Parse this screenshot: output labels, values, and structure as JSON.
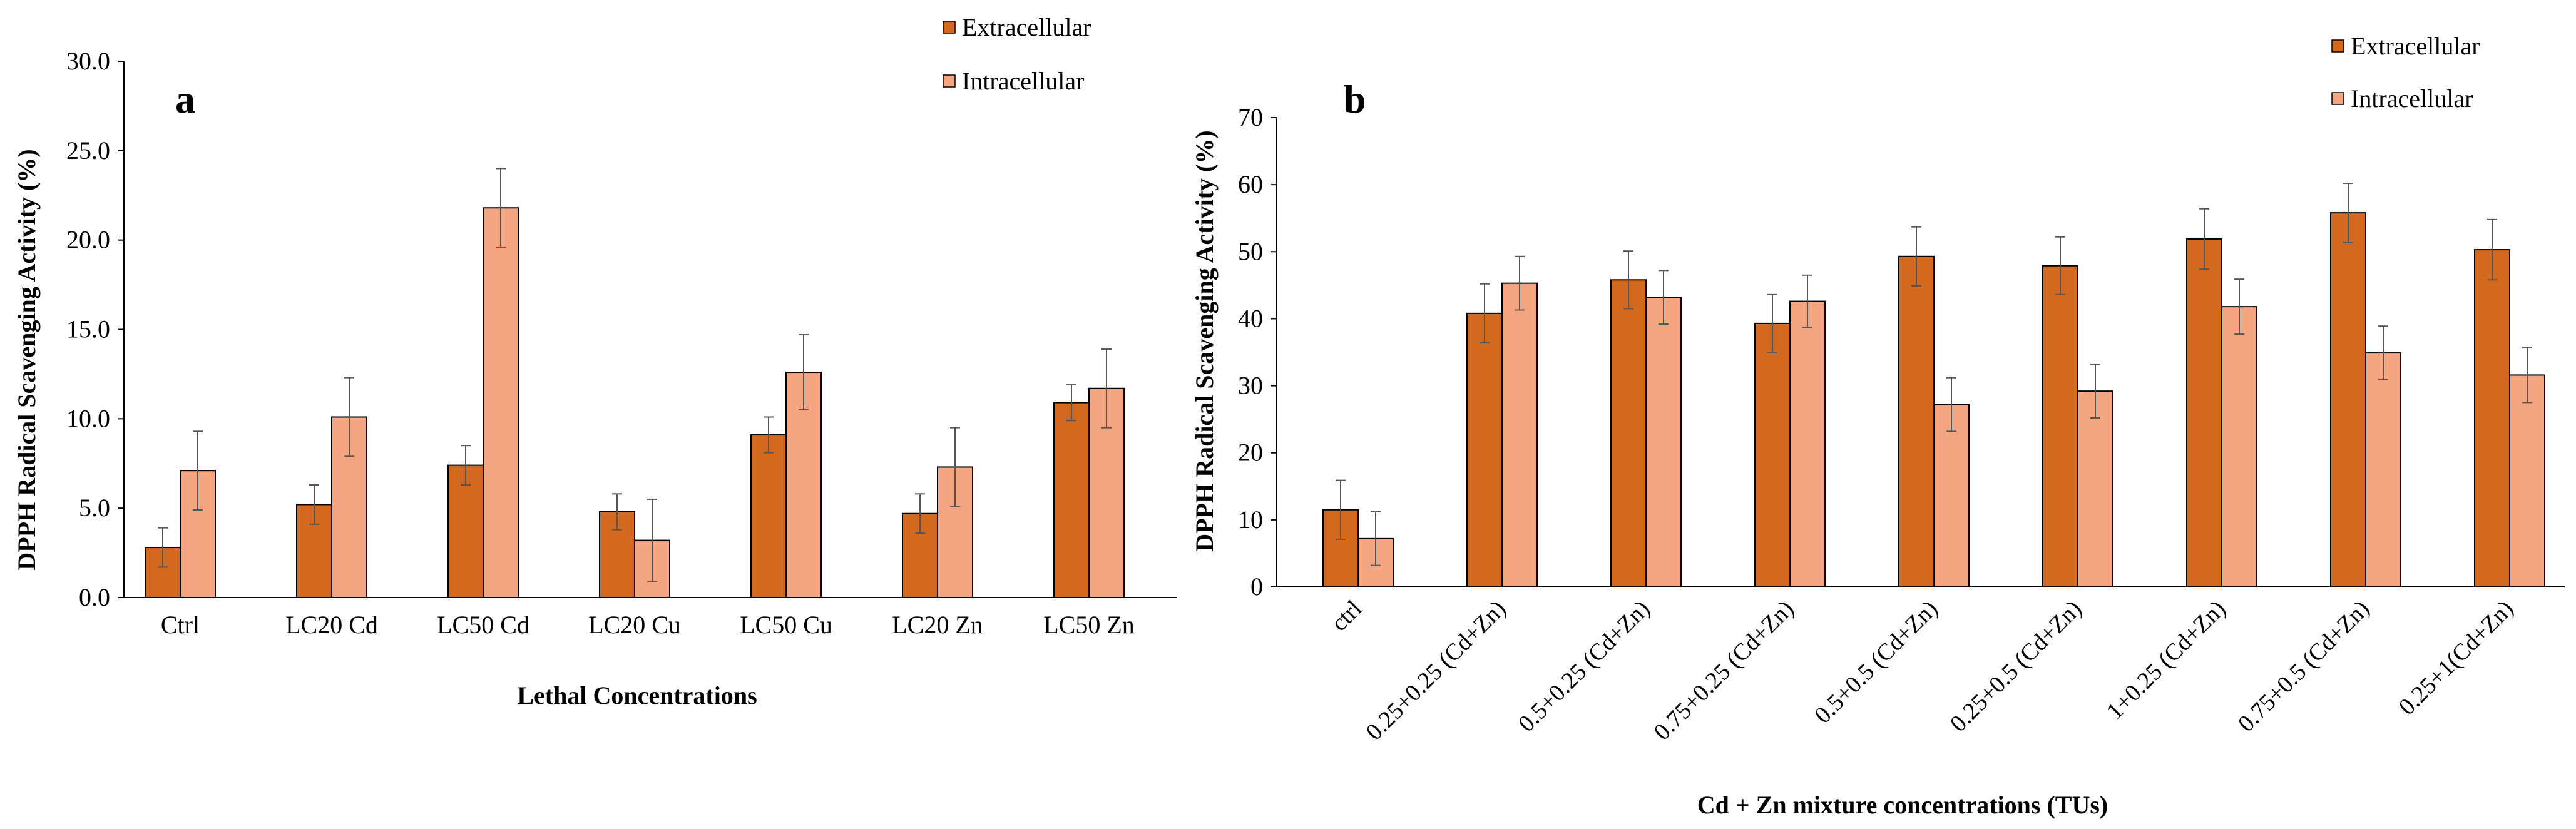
{
  "chart_data": [
    {
      "type": "bar",
      "panel_label": "a",
      "xlabel": "Lethal Concentrations",
      "ylabel": "DPPH Radical Scavenging Activity (%)",
      "ylim": [
        0,
        30
      ],
      "yticks": [
        "0.0",
        "5.0",
        "10.0",
        "15.0",
        "20.0",
        "25.0",
        "30.0"
      ],
      "ytick_values": [
        0,
        5,
        10,
        15,
        20,
        25,
        30
      ],
      "categories": [
        "Ctrl",
        "LC20 Cd",
        "LC50 Cd",
        "LC20 Cu",
        "LC50 Cu",
        "LC20 Zn",
        "LC50 Zn"
      ],
      "grid": false,
      "legend_position": "top-right",
      "series": [
        {
          "name": "Extracellular",
          "color": "#d2691e",
          "values": [
            2.8,
            5.2,
            7.4,
            4.8,
            9.1,
            4.7,
            10.9
          ],
          "errors": [
            1.1,
            1.1,
            1.1,
            1.0,
            1.0,
            1.1,
            1.0
          ]
        },
        {
          "name": "Intracellular",
          "color": "#f4a582",
          "values": [
            7.1,
            10.1,
            21.8,
            3.2,
            12.6,
            7.3,
            11.7
          ],
          "errors": [
            2.2,
            2.2,
            2.2,
            2.3,
            2.1,
            2.2,
            2.2
          ]
        }
      ]
    },
    {
      "type": "bar",
      "panel_label": "b",
      "xlabel": "Cd + Zn mixture concentrations (TUs)",
      "ylabel": "DPPH Radical Scavenging Activity (%)",
      "ylim": [
        0,
        70
      ],
      "yticks": [
        "0",
        "10",
        "20",
        "30",
        "40",
        "50",
        "60",
        "70"
      ],
      "ytick_values": [
        0,
        10,
        20,
        30,
        40,
        50,
        60,
        70
      ],
      "categories": [
        "ctrl",
        "0.25+0.25 (Cd+Zn)",
        "0.5+0.25 (Cd+Zn)",
        "0.75+0.25 (Cd+Zn)",
        "0.5+0.5 (Cd+Zn)",
        "0.25+0.5 (Cd+Zn)",
        "1+0.25 (Cd+Zn)",
        "0.75+0.5 (Cd+Zn)",
        "0.25+1(Cd+Zn)"
      ],
      "grid": false,
      "legend_position": "top-right",
      "series": [
        {
          "name": "Extracellular",
          "color": "#d2691e",
          "values": [
            11.5,
            40.8,
            45.8,
            39.3,
            49.3,
            47.9,
            51.9,
            55.8,
            50.3
          ],
          "errors": [
            4.4,
            4.4,
            4.3,
            4.3,
            4.4,
            4.3,
            4.5,
            4.4,
            4.5
          ]
        },
        {
          "name": "Intracellular",
          "color": "#f4a582",
          "values": [
            7.2,
            45.3,
            43.2,
            42.6,
            27.2,
            29.2,
            41.8,
            34.9,
            31.6
          ],
          "errors": [
            4.0,
            4.0,
            4.0,
            3.9,
            4.0,
            4.0,
            4.1,
            4.0,
            4.1
          ]
        }
      ]
    }
  ]
}
